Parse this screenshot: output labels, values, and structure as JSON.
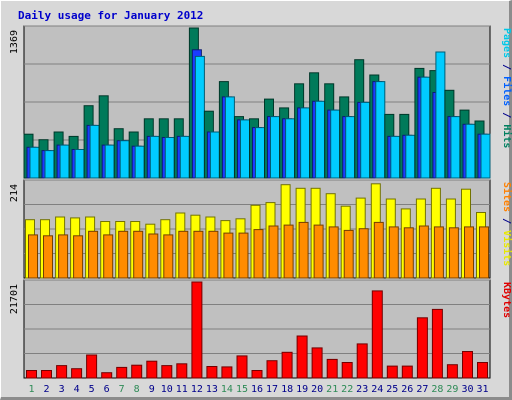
{
  "chart_data": {
    "type": "bar",
    "title": "Daily usage for January 2012",
    "categories": [
      "1",
      "2",
      "3",
      "4",
      "5",
      "6",
      "7",
      "8",
      "9",
      "10",
      "11",
      "12",
      "13",
      "14",
      "15",
      "16",
      "17",
      "18",
      "19",
      "20",
      "21",
      "22",
      "23",
      "24",
      "25",
      "26",
      "27",
      "28",
      "29",
      "30",
      "31"
    ],
    "weekend_days": [
      "1",
      "7",
      "8",
      "14",
      "15",
      "21",
      "22",
      "28",
      "29"
    ],
    "panels": [
      {
        "name": "top",
        "ymax_label": "1369",
        "ymax": 1369,
        "side_labels": [
          {
            "text": "Pages",
            "color": "#00c8e8"
          },
          {
            "text": " / ",
            "color": "#00008b"
          },
          {
            "text": "Files",
            "color": "#0060ff"
          },
          {
            "text": " / ",
            "color": "#00008b"
          },
          {
            "text": "Hits",
            "color": "#008060"
          }
        ],
        "series": [
          {
            "name": "Hits",
            "color": "#007a5a",
            "values": [
              400,
              350,
              420,
              380,
              660,
              750,
              450,
              420,
              540,
              540,
              540,
              1369,
              610,
              880,
              560,
              540,
              720,
              640,
              860,
              960,
              860,
              740,
              1080,
              940,
              580,
              580,
              1000,
              980,
              800,
              620,
              520
            ]
          },
          {
            "name": "Files",
            "color": "#1a3cff",
            "values": [
              280,
              250,
              300,
              260,
              480,
              300,
              340,
              290,
              380,
              370,
              380,
              1170,
              420,
              740,
              530,
              460,
              560,
              540,
              640,
              700,
              620,
              560,
              690,
              880,
              380,
              390,
              920,
              780,
              560,
              490,
              400
            ]
          },
          {
            "name": "Pages",
            "color": "#00ccff",
            "values": [
              280,
              250,
              300,
              260,
              480,
              300,
              340,
              290,
              380,
              370,
              380,
              1110,
              420,
              740,
              530,
              460,
              560,
              540,
              640,
              700,
              620,
              560,
              690,
              880,
              380,
              390,
              920,
              1150,
              560,
              490,
              400
            ]
          }
        ]
      },
      {
        "name": "middle",
        "ymax_label": "214",
        "ymax": 214,
        "side_labels": [
          {
            "text": "Sites",
            "color": "#ff8000"
          },
          {
            "text": " / ",
            "color": "#00008b"
          },
          {
            "text": "Visits",
            "color": "#e8e800"
          }
        ],
        "series": [
          {
            "name": "Visits",
            "color": "#ffff00",
            "values": [
              130,
              130,
              136,
              134,
              136,
              126,
              126,
              126,
              120,
              130,
              145,
              140,
              136,
              128,
              132,
              162,
              168,
              208,
              200,
              200,
              188,
              160,
              178,
              210,
              176,
              154,
              176,
              200,
              176,
              198,
              146
            ]
          },
          {
            "name": "Sites",
            "color": "#ff8c00",
            "values": [
              96,
              94,
              96,
              94,
              104,
              96,
              104,
              104,
              98,
              96,
              104,
              104,
              104,
              100,
              100,
              108,
              116,
              118,
              124,
              118,
              114,
              106,
              110,
              124,
              114,
              112,
              116,
              114,
              112,
              114,
              114
            ]
          }
        ]
      },
      {
        "name": "bottom",
        "ymax_label": "21701",
        "ymax": 21701,
        "side_labels": [
          {
            "text": "KBytes",
            "color": "#e00000"
          }
        ],
        "series": [
          {
            "name": "KBytes",
            "color": "#ff0000",
            "values": [
              1700,
              1700,
              2800,
              2100,
              5200,
              1200,
              2400,
              2900,
              3800,
              2800,
              3200,
              21701,
              2600,
              2500,
              5000,
              1700,
              3900,
              5800,
              9500,
              6800,
              4200,
              3500,
              7700,
              19700,
              2700,
              2700,
              13600,
              15500,
              3000,
              6000,
              3500
            ]
          }
        ]
      }
    ]
  }
}
